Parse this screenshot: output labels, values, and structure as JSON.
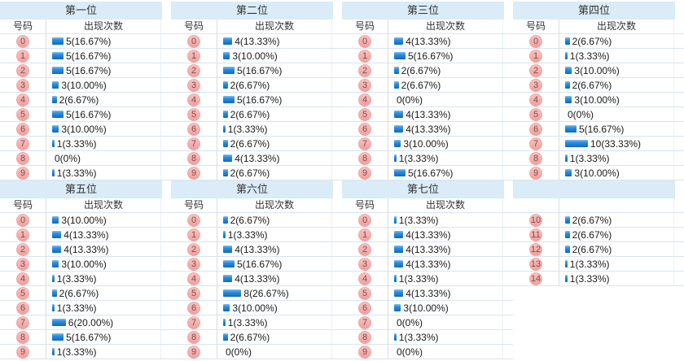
{
  "labels": {
    "number_header": "号码",
    "count_header": "出现次数"
  },
  "colors": {
    "band_bg": "#d9ecf7",
    "row_border": "#d7e5ef",
    "badge_bg": "#f3aba9",
    "badge_text": "#8b4a47",
    "bar_blue": "#0e69be",
    "value_text": "#1a1a1a"
  },
  "chart_data": [
    {
      "type": "bar",
      "title": "第一位",
      "number_header": "号码",
      "count_header": "出现次数",
      "categories": [
        "0",
        "1",
        "2",
        "3",
        "4",
        "5",
        "6",
        "7",
        "8",
        "9"
      ],
      "values": [
        5,
        5,
        5,
        3,
        2,
        5,
        3,
        1,
        0,
        1
      ],
      "labels": [
        "5(16.67%)",
        "5(16.67%)",
        "5(16.67%)",
        "3(10.00%)",
        "2(6.67%)",
        "5(16.67%)",
        "3(10.00%)",
        "1(3.33%)",
        "0(0%)",
        "1(3.33%)"
      ]
    },
    {
      "type": "bar",
      "title": "第二位",
      "number_header": "号码",
      "count_header": "出现次数",
      "categories": [
        "0",
        "1",
        "2",
        "3",
        "4",
        "5",
        "6",
        "7",
        "8",
        "9"
      ],
      "values": [
        4,
        3,
        5,
        2,
        5,
        2,
        1,
        2,
        4,
        2
      ],
      "labels": [
        "4(13.33%)",
        "3(10.00%)",
        "5(16.67%)",
        "2(6.67%)",
        "5(16.67%)",
        "2(6.67%)",
        "1(3.33%)",
        "2(6.67%)",
        "4(13.33%)",
        "2(6.67%)"
      ]
    },
    {
      "type": "bar",
      "title": "第三位",
      "number_header": "号码",
      "count_header": "出现次数",
      "categories": [
        "0",
        "1",
        "2",
        "3",
        "4",
        "5",
        "6",
        "7",
        "8",
        "9"
      ],
      "values": [
        4,
        5,
        2,
        2,
        0,
        4,
        4,
        3,
        1,
        5
      ],
      "labels": [
        "4(13.33%)",
        "5(16.67%)",
        "2(6.67%)",
        "2(6.67%)",
        "0(0%)",
        "4(13.33%)",
        "4(13.33%)",
        "3(10.00%)",
        "1(3.33%)",
        "5(16.67%)"
      ]
    },
    {
      "type": "bar",
      "title": "第四位",
      "number_header": "号码",
      "count_header": "出现次数",
      "categories": [
        "0",
        "1",
        "2",
        "3",
        "4",
        "5",
        "6",
        "7",
        "8",
        "9"
      ],
      "values": [
        2,
        1,
        3,
        2,
        3,
        0,
        5,
        10,
        1,
        3
      ],
      "labels": [
        "2(6.67%)",
        "1(3.33%)",
        "3(10.00%)",
        "2(6.67%)",
        "3(10.00%)",
        "0(0%)",
        "5(16.67%)",
        "10(33.33%)",
        "1(3.33%)",
        "3(10.00%)"
      ]
    },
    {
      "type": "bar",
      "title": "第五位",
      "number_header": "号码",
      "count_header": "出现次数",
      "categories": [
        "0",
        "1",
        "2",
        "3",
        "4",
        "5",
        "6",
        "7",
        "8",
        "9"
      ],
      "values": [
        3,
        4,
        4,
        3,
        1,
        2,
        1,
        6,
        5,
        1
      ],
      "labels": [
        "3(10.00%)",
        "4(13.33%)",
        "4(13.33%)",
        "3(10.00%)",
        "1(3.33%)",
        "2(6.67%)",
        "1(3.33%)",
        "6(20.00%)",
        "5(16.67%)",
        "1(3.33%)"
      ]
    },
    {
      "type": "bar",
      "title": "第六位",
      "number_header": "号码",
      "count_header": "出现次数",
      "categories": [
        "0",
        "1",
        "2",
        "3",
        "4",
        "5",
        "6",
        "7",
        "8",
        "9"
      ],
      "values": [
        2,
        1,
        4,
        5,
        4,
        8,
        3,
        1,
        2,
        0
      ],
      "labels": [
        "2(6.67%)",
        "1(3.33%)",
        "4(13.33%)",
        "5(16.67%)",
        "4(13.33%)",
        "8(26.67%)",
        "3(10.00%)",
        "1(3.33%)",
        "2(6.67%)",
        "0(0%)"
      ]
    },
    {
      "type": "bar",
      "title": "第七位",
      "number_header": "号码",
      "count_header": "出现次数",
      "categories": [
        "0",
        "1",
        "2",
        "3",
        "4",
        "5",
        "6",
        "7",
        "8",
        "9"
      ],
      "values": [
        1,
        4,
        4,
        4,
        1,
        4,
        3,
        0,
        1,
        0
      ],
      "labels": [
        "1(3.33%)",
        "4(13.33%)",
        "4(13.33%)",
        "4(13.33%)",
        "1(3.33%)",
        "4(13.33%)",
        "3(10.00%)",
        "0(0%)",
        "1(3.33%)",
        "0(0%)"
      ]
    },
    {
      "type": "bar",
      "title": "",
      "number_header": "",
      "count_header": "",
      "categories": [
        "10",
        "11",
        "12",
        "13",
        "14"
      ],
      "values": [
        2,
        2,
        2,
        1,
        1
      ],
      "labels": [
        "2(6.67%)",
        "2(6.67%)",
        "2(6.67%)",
        "1(3.33%)",
        "1(3.33%)"
      ]
    }
  ]
}
